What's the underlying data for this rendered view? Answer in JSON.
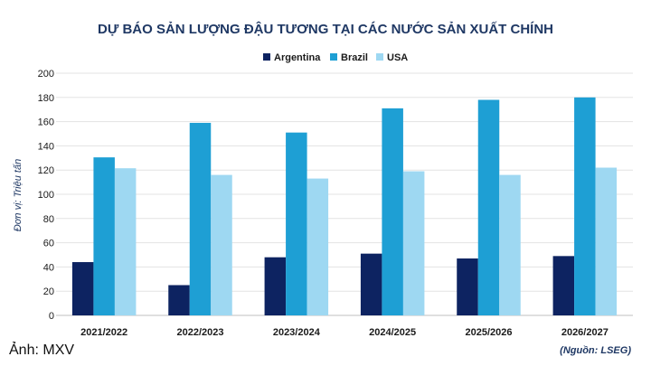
{
  "chart_data": {
    "type": "bar",
    "title": "DỰ BÁO SẢN LƯỢNG ĐẬU TƯƠNG TẠI CÁC NƯỚC SẢN XUẤT CHÍNH",
    "ylabel": "Đơn vị: Triệu tấn",
    "xlabel": "",
    "ylim": [
      0,
      200
    ],
    "yticks": [
      0,
      20,
      40,
      60,
      80,
      100,
      120,
      140,
      160,
      180,
      200
    ],
    "grid": true,
    "legend_position": "top",
    "categories": [
      "2021/2022",
      "2022/2023",
      "2023/2024",
      "2024/2025",
      "2025/2026",
      "2026/2027"
    ],
    "series": [
      {
        "name": "Argentina",
        "color": "#0d2361",
        "values": [
          44,
          25,
          48,
          51,
          47,
          49
        ]
      },
      {
        "name": "Brazil",
        "color": "#1e9fd4",
        "values": [
          130.5,
          159,
          151,
          171,
          178,
          180
        ]
      },
      {
        "name": "USA",
        "color": "#9ed8f2",
        "values": [
          121.5,
          116,
          113,
          119,
          116,
          122
        ]
      }
    ]
  },
  "caption": "Ảnh: MXV",
  "source": "(Nguồn: LSEG)"
}
